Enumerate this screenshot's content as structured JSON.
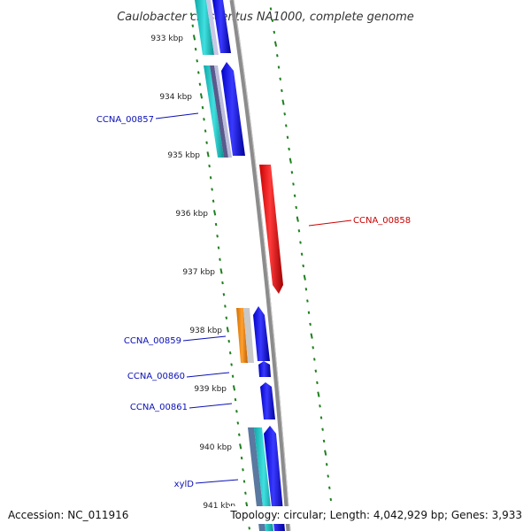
{
  "title": "Caulobacter crescentus NA1000, complete genome",
  "accession": "Accession: NC_011916",
  "topology": "Topology: circular; Length: 4,042,929 bp; Genes: 3,933",
  "colors": {
    "backbone": "#8c8c8c",
    "ticks": "#1e7f1e",
    "label_blue": "#0a10b4",
    "label_red": "#cc0000",
    "cds_blue": "#0000e6",
    "cds_red": "#ee1111",
    "cds_cyan": "#18c8c8",
    "cds_orange": "#f08c10",
    "cds_steel": "#5a78a0",
    "cds_slate": "#5a5a8c",
    "cds_light": "#bcbcdc"
  },
  "kbp_ticks": [
    "933 kbp",
    "934 kbp",
    "935 kbp",
    "936 kbp",
    "937 kbp",
    "938 kbp",
    "939 kbp",
    "940 kbp",
    "941 kbp"
  ],
  "gene_labels": [
    {
      "name": "CCNA_00857",
      "color": "blue"
    },
    {
      "name": "CCNA_00858",
      "color": "red"
    },
    {
      "name": "CCNA_00859",
      "color": "blue"
    },
    {
      "name": "CCNA_00860",
      "color": "blue"
    },
    {
      "name": "CCNA_00861",
      "color": "blue"
    },
    {
      "name": "xylD",
      "color": "blue"
    }
  ]
}
